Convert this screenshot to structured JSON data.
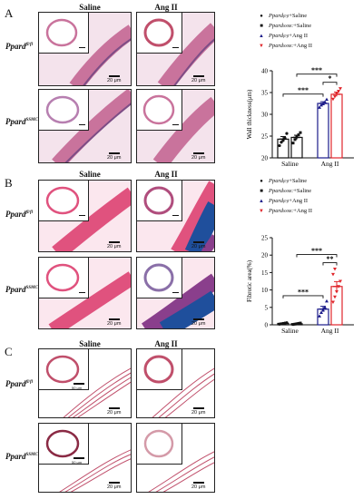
{
  "panels": {
    "A": {
      "letter": "A",
      "columns": [
        "Saline",
        "Ang II"
      ],
      "rows": [
        {
          "base": "Ppard",
          "sup": "fl/fl"
        },
        {
          "base": "Ppard",
          "sup": "SSMC"
        }
      ],
      "scale_label": "20 μm",
      "stain_colors": {
        "bg": "#f4e3ec",
        "wall": "#c9739c",
        "dark": "#7d4d86"
      }
    },
    "B": {
      "letter": "B",
      "columns": [
        "Saline",
        "Ang II"
      ],
      "rows": [
        {
          "base": "Ppard",
          "sup": "fl/fl"
        },
        {
          "base": "Ppard",
          "sup": "SSMC"
        }
      ],
      "scale_label": "20 μm",
      "stain_colors": {
        "bg": "#fbe7ee",
        "wall": "#e0527e",
        "blue": "#1f4f9c"
      }
    },
    "C": {
      "letter": "C",
      "columns": [
        "Saline",
        "Ang II"
      ],
      "rows": [
        {
          "base": "Ppard",
          "sup": "fl/fl"
        },
        {
          "base": "Ppard",
          "sup": "SSMC"
        }
      ],
      "scale_label": "20 μm",
      "inset_scale": "50 μm",
      "stain_colors": {
        "bg": "#ffffff",
        "wall": "#c04f6b"
      }
    }
  },
  "legend_A": [
    {
      "marker": "●",
      "base": "Ppard",
      "sup": "fl/fl",
      "suffix": "+Saline",
      "color": "#111111"
    },
    {
      "marker": "■",
      "base": "Ppard",
      "sup": "SSMC",
      "suffix": " +Saline",
      "color": "#111111"
    },
    {
      "marker": "▲",
      "base": "Ppard",
      "sup": "fl/fl",
      "suffix": "+Ang II",
      "color": "#1c1c8a"
    },
    {
      "marker": "▼",
      "base": "Ppard",
      "sup": "SSMC",
      "suffix": " +Ang II",
      "color": "#e0262b"
    }
  ],
  "legend_B": [
    {
      "marker": "●",
      "base": "Ppard",
      "sup": "fl/fl",
      "suffix": "+Saline",
      "color": "#111111"
    },
    {
      "marker": "■",
      "base": "Ppard",
      "sup": "SSMC",
      "suffix": " +Saline",
      "color": "#111111"
    },
    {
      "marker": "▲",
      "base": "Ppard",
      "sup": "fl/fl",
      "suffix": "+Ang II",
      "color": "#1c1c8a"
    },
    {
      "marker": "▼",
      "base": "Ppard",
      "sup": "SSMC",
      "suffix": " +Ang II",
      "color": "#e0262b"
    }
  ],
  "chart_data": [
    {
      "type": "bar",
      "ylabel": "Wall thickness(μm)",
      "categories": [
        "Saline",
        "Ang II"
      ],
      "ylim": [
        20,
        40
      ],
      "yticks": [
        20,
        25,
        30,
        35,
        40
      ],
      "series": [
        {
          "name": "Ppard fl/fl +Saline",
          "category": "Saline",
          "mean": 24.3,
          "sem": 0.6,
          "color": "#111111",
          "points": [
            22.8,
            23.6,
            24.0,
            24.5,
            25.6
          ]
        },
        {
          "name": "Ppard SSMC +Saline",
          "category": "Saline",
          "mean": 24.7,
          "sem": 0.5,
          "color": "#111111",
          "points": [
            23.4,
            24.2,
            24.8,
            25.3,
            25.8
          ]
        },
        {
          "name": "Ppard fl/fl +Ang II",
          "category": "Ang II",
          "mean": 32.5,
          "sem": 0.4,
          "color": "#1c1c8a",
          "points": [
            31.6,
            32.1,
            32.4,
            32.8,
            33.4
          ]
        },
        {
          "name": "Ppard SSMC +Ang II",
          "category": "Ang II",
          "mean": 34.6,
          "sem": 0.5,
          "color": "#e0262b",
          "points": [
            33.5,
            34.1,
            34.8,
            35.3,
            35.9
          ]
        }
      ],
      "significance": [
        {
          "label": "***",
          "from": 0,
          "to": 2
        },
        {
          "label": "***",
          "from": 1,
          "to": 3
        },
        {
          "label": "*",
          "from": 2,
          "to": 3
        }
      ]
    },
    {
      "type": "bar",
      "ylabel": "Fibrotic area(%)",
      "categories": [
        "Saline",
        "Ang II"
      ],
      "ylim": [
        0,
        25
      ],
      "yticks": [
        0,
        5,
        10,
        15,
        20,
        25
      ],
      "series": [
        {
          "name": "Ppard fl/fl +Saline",
          "category": "Saline",
          "mean": 0.4,
          "sem": 0.1,
          "color": "#111111",
          "points": [
            0.2,
            0.3,
            0.4,
            0.5,
            0.6
          ]
        },
        {
          "name": "Ppard SSMC +Saline",
          "category": "Saline",
          "mean": 0.3,
          "sem": 0.1,
          "color": "#111111",
          "points": [
            0.1,
            0.2,
            0.3,
            0.4,
            0.5
          ]
        },
        {
          "name": "Ppard fl/fl +Ang II",
          "category": "Ang II",
          "mean": 4.5,
          "sem": 0.8,
          "color": "#1c1c8a",
          "points": [
            2.5,
            3.5,
            4.2,
            5.0,
            6.8
          ]
        },
        {
          "name": "Ppard SSMC +Ang II",
          "category": "Ang II",
          "mean": 11.0,
          "sem": 1.4,
          "color": "#e0262b",
          "points": [
            6.5,
            8.0,
            9.5,
            11.0,
            12.5,
            14.5,
            16.0
          ]
        }
      ],
      "significance": [
        {
          "label": "***",
          "from": 0,
          "to": 2
        },
        {
          "label": "***",
          "from": 1,
          "to": 3
        },
        {
          "label": "**",
          "from": 2,
          "to": 3
        }
      ]
    }
  ]
}
